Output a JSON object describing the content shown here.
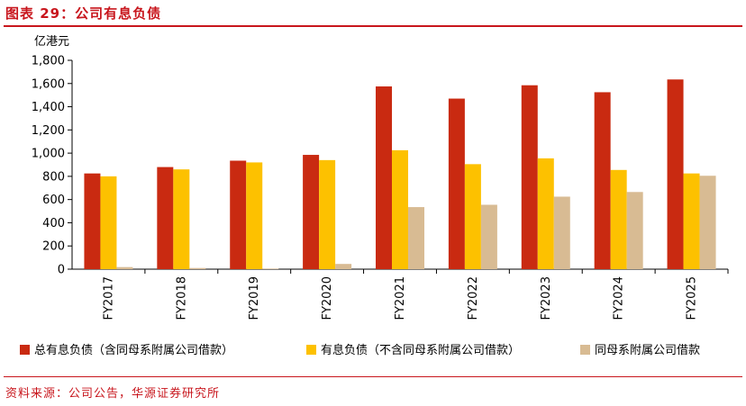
{
  "figure_title": "图表 29：公司有息负债",
  "source": "资料来源：公司公告，华源证券研究所",
  "colors": {
    "series_1": "#c92a11",
    "series_2": "#fdc100",
    "series_3": "#d8bb93",
    "accent": "#c8161d"
  },
  "chart_data": {
    "type": "bar",
    "ylabel": "亿港元",
    "ylim": [
      0,
      1800
    ],
    "yticks": [
      "0",
      "200",
      "400",
      "600",
      "800",
      "1,000",
      "1,200",
      "1,400",
      "1,600",
      "1,800"
    ],
    "ytick_values": [
      0,
      200,
      400,
      600,
      800,
      1000,
      1200,
      1400,
      1600,
      1800
    ],
    "categories": [
      "FY2017",
      "FY2018",
      "FY2019",
      "FY2020",
      "FY2021",
      "FY2022",
      "FY2023",
      "FY2024",
      "FY2025"
    ],
    "series": [
      {
        "name": "总有息负债（含同母系附属公司借款）",
        "values": [
          825,
          880,
          935,
          985,
          1575,
          1470,
          1585,
          1525,
          1635
        ]
      },
      {
        "name": "有息负债（不含同母系附属公司借款）",
        "values": [
          800,
          860,
          920,
          940,
          1025,
          905,
          955,
          855,
          825
        ]
      },
      {
        "name": "同母系附属公司借款",
        "values": [
          18,
          10,
          5,
          45,
          535,
          555,
          625,
          665,
          805
        ]
      }
    ],
    "legend_position": "bottom",
    "grid": false
  }
}
